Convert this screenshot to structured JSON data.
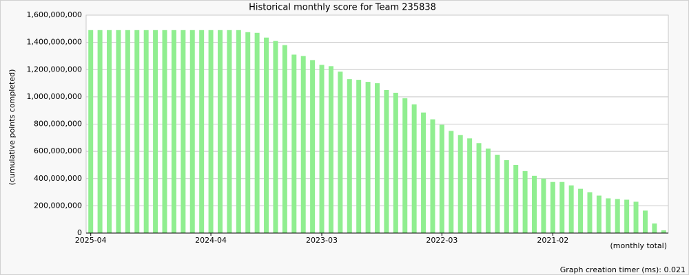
{
  "chart_data": {
    "type": "bar",
    "title": "Historical monthly score for Team 235838",
    "y_label": "(cumulative points completed)",
    "x_label": "(monthly total)",
    "footer": "Graph creation timer (ms): 0.021",
    "color": "#90ee90",
    "grid": true,
    "categories": [
      "2025-04",
      null,
      null,
      null,
      null,
      null,
      null,
      null,
      null,
      null,
      null,
      null,
      null,
      "2024-04",
      null,
      null,
      null,
      null,
      null,
      null,
      null,
      null,
      null,
      null,
      null,
      "2023-03",
      null,
      null,
      null,
      null,
      null,
      null,
      null,
      null,
      null,
      null,
      null,
      null,
      "2022-03",
      null,
      null,
      null,
      null,
      null,
      null,
      null,
      null,
      null,
      null,
      null,
      "2021-02",
      null,
      null,
      null,
      null,
      null,
      null,
      null,
      null,
      null,
      null,
      null,
      null
    ],
    "values": [
      1490000000,
      1490000000,
      1490000000,
      1490000000,
      1490000000,
      1490000000,
      1490000000,
      1490000000,
      1490000000,
      1490000000,
      1490000000,
      1490000000,
      1490000000,
      1490000000,
      1490000000,
      1490000000,
      1490000000,
      1475000000,
      1470000000,
      1435000000,
      1410000000,
      1380000000,
      1310000000,
      1300000000,
      1270000000,
      1235000000,
      1225000000,
      1185000000,
      1130000000,
      1125000000,
      1110000000,
      1100000000,
      1050000000,
      1030000000,
      990000000,
      945000000,
      885000000,
      835000000,
      795000000,
      750000000,
      720000000,
      695000000,
      660000000,
      620000000,
      575000000,
      535000000,
      500000000,
      455000000,
      420000000,
      400000000,
      375000000,
      375000000,
      350000000,
      325000000,
      300000000,
      275000000,
      255000000,
      250000000,
      245000000,
      230000000,
      165000000,
      70000000,
      20000000
    ],
    "ylim": [
      0,
      1600000000
    ],
    "yticks": [
      0,
      {
        "value": 200000000,
        "label": "200,000,000"
      },
      {
        "value": 400000000,
        "label": "400,000,000"
      },
      {
        "value": 600000000,
        "label": "600,000,000"
      },
      {
        "value": 800000000,
        "label": "800,000,000"
      },
      {
        "value": 1000000000,
        "label": "1,000,000,000"
      },
      {
        "value": 1200000000,
        "label": "1,200,000,000"
      },
      {
        "value": 1400000000,
        "label": "1,400,000,000"
      },
      {
        "value": 1600000000,
        "label": "1,600,000,000"
      }
    ]
  }
}
